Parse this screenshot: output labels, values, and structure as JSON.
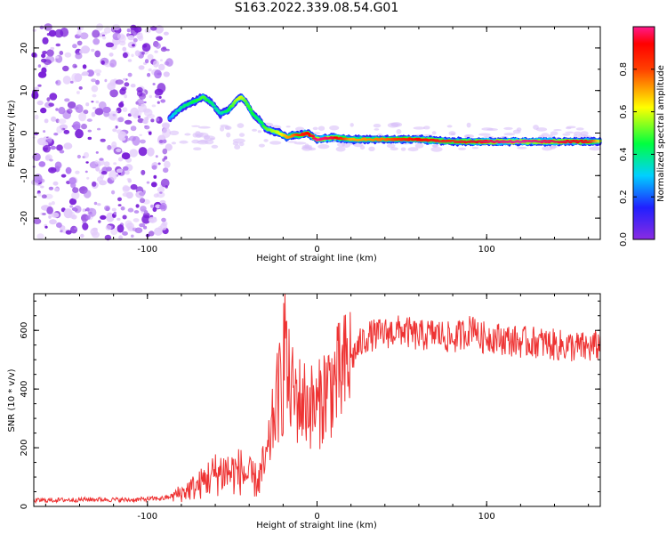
{
  "page": {
    "title": "S163.2022.339.08.54.G01"
  },
  "chart_data": [
    {
      "type": "heatmap",
      "xlabel": "Height of straight line (km)",
      "ylabel": "Frequency (Hz)",
      "xlim": [
        -167,
        167
      ],
      "ylim": [
        -25,
        25
      ],
      "x_ticks": [
        -100,
        0,
        100
      ],
      "x_tick_labels": [
        "-100",
        "0",
        "100"
      ],
      "y_ticks": [
        -20,
        -10,
        0,
        10,
        20
      ],
      "y_tick_labels": [
        "-20",
        "-10",
        "0",
        "10",
        "20"
      ],
      "ridge": {
        "x": [
          -87,
          -83,
          -78,
          -72,
          -67,
          -62,
          -57,
          -52,
          -48,
          -45,
          -42,
          -38,
          -34,
          -30,
          -26,
          -22,
          -18,
          -14,
          -10,
          -6,
          -2,
          0,
          10,
          20,
          40,
          60,
          80,
          100,
          120,
          140,
          160,
          167
        ],
        "y": [
          3.5,
          5,
          6.5,
          7.5,
          8.5,
          7,
          4.5,
          5.5,
          7.5,
          8.5,
          7.5,
          4.5,
          3,
          1,
          0.5,
          0,
          -1,
          -0.5,
          -0.5,
          0,
          -1,
          -1.5,
          -1,
          -1.5,
          -1.5,
          -1.5,
          -2,
          -2,
          -2,
          -2,
          -2,
          -2
        ],
        "intensity": [
          0.25,
          0.35,
          0.4,
          0.45,
          0.5,
          0.4,
          0.35,
          0.45,
          0.55,
          0.6,
          0.5,
          0.45,
          0.4,
          0.5,
          0.55,
          0.6,
          0.7,
          0.75,
          0.85,
          0.9,
          0.95,
          1.0,
          0.95,
          0.7,
          0.75,
          0.9,
          0.85,
          0.95,
          1.0,
          0.95,
          0.9,
          0.6
        ]
      },
      "noise_region": {
        "x_start": -167,
        "x_end": -87
      },
      "colorbar": {
        "label": "Normalized spectral amplitude",
        "range": [
          0,
          1
        ],
        "ticks": [
          0.0,
          0.2,
          0.4,
          0.6,
          0.8
        ],
        "tick_labels": [
          "0.0",
          "0.2",
          "0.4",
          "0.6",
          "0.8"
        ]
      }
    },
    {
      "type": "line",
      "xlabel": "Height of straight line (km)",
      "ylabel": "SNR (10 * v/v)",
      "xlim": [
        -167,
        167
      ],
      "ylim": [
        0,
        725
      ],
      "x_ticks": [
        -100,
        0,
        100
      ],
      "x_tick_labels": [
        "-100",
        "0",
        "100"
      ],
      "y_ticks": [
        0,
        200,
        400,
        600
      ],
      "y_tick_labels": [
        "0",
        "200",
        "400",
        "600"
      ],
      "color": "#ee3333",
      "series": [
        {
          "x": [
            -167,
            -150,
            -130,
            -110,
            -90,
            -80,
            -75,
            -70,
            -65,
            -60,
            -55,
            -50,
            -45,
            -40,
            -35,
            -30,
            -27,
            -25,
            -22,
            -20,
            -19,
            -18,
            -15,
            -10,
            -5,
            0,
            5,
            10,
            15,
            20,
            25,
            30,
            40,
            50,
            60,
            70,
            80,
            90,
            93,
            95,
            100,
            110,
            120,
            130,
            140,
            150,
            160,
            167
          ],
          "values": [
            20,
            22,
            24,
            22,
            28,
            45,
            60,
            70,
            95,
            110,
            120,
            115,
            120,
            100,
            85,
            150,
            250,
            330,
            400,
            420,
            700,
            450,
            390,
            360,
            350,
            330,
            400,
            420,
            450,
            500,
            550,
            580,
            590,
            600,
            580,
            590,
            570,
            600,
            630,
            570,
            580,
            570,
            560,
            560,
            550,
            545,
            540,
            550
          ]
        }
      ]
    }
  ]
}
